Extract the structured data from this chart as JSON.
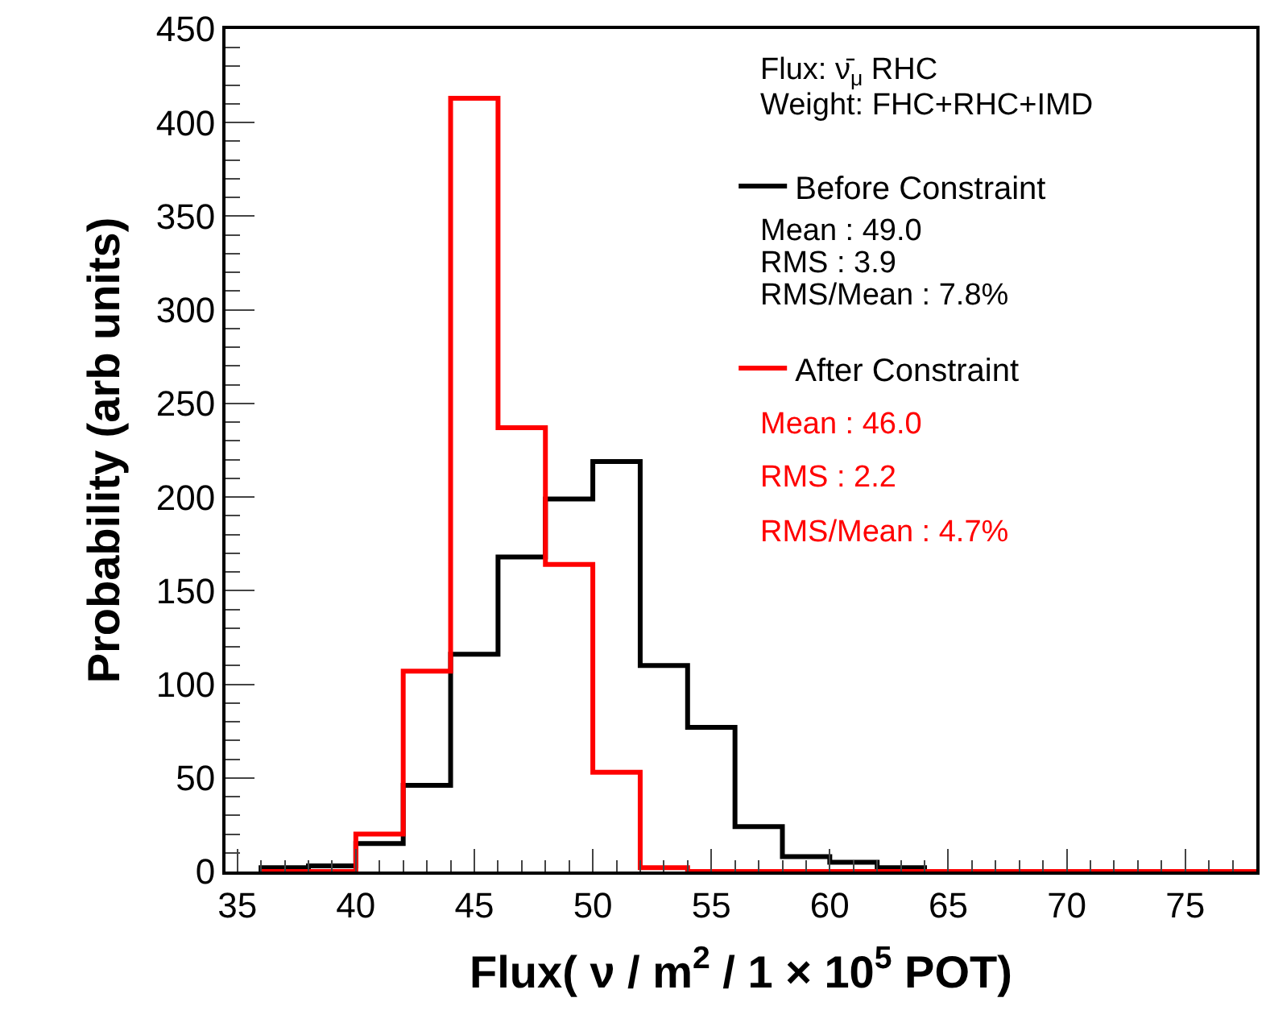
{
  "chart_data": {
    "type": "histogram",
    "xlabel": "Flux( ν / m$^{2}$ / 1 × 10$^{5}$ POT)",
    "ylabel": "Probability (arb units)",
    "bins": [
      36,
      38,
      40,
      42,
      44,
      46,
      48,
      50,
      52,
      54,
      56,
      58,
      60,
      62,
      64,
      66,
      68,
      70,
      72,
      74,
      76,
      78
    ],
    "series": [
      {
        "name": "Before Constraint",
        "color": "#000000",
        "values": [
          2,
          3,
          15,
          46,
          116,
          168,
          199,
          219,
          110,
          77,
          24,
          8,
          5,
          2,
          0,
          0,
          0,
          0,
          0,
          0,
          0
        ]
      },
      {
        "name": "After Constraint",
        "color": "#ff0000",
        "values": [
          0,
          0,
          20,
          107,
          413,
          237,
          164,
          53,
          2,
          0,
          0,
          0,
          0,
          0,
          0,
          0,
          0,
          0,
          0,
          0,
          0
        ]
      }
    ],
    "xlim": [
      34.5,
      78
    ],
    "xticks": [
      35,
      40,
      45,
      50,
      55,
      60,
      65,
      70,
      75
    ],
    "ylim": [
      0,
      450
    ],
    "yticks": [
      0,
      50,
      100,
      150,
      200,
      250,
      300,
      350,
      400,
      450
    ],
    "legend": "top right",
    "grid": false,
    "annotations": [
      "Flux: ν̄$_{μ}$ RHC",
      "Weight: FHC+RHC+IMD",
      "Mean : 49.0",
      "RMS : 3.9",
      "RMS/Mean : 7.8%",
      "Mean : 46.0",
      "RMS : 2.2",
      "RMS/Mean : 4.7%"
    ]
  }
}
